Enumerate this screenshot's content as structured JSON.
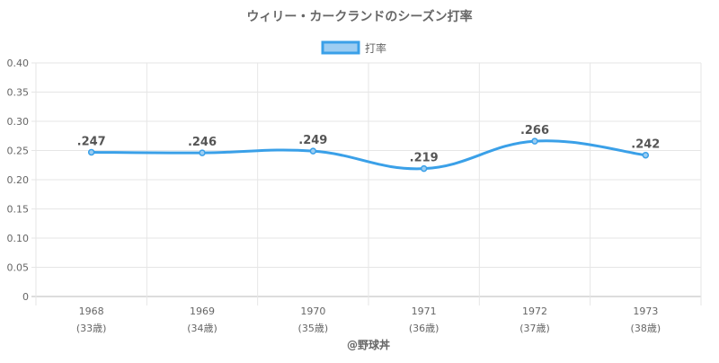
{
  "chart_data": {
    "type": "line",
    "title": "ウィリー・カークランドのシーズン打率",
    "legend": {
      "label": "打率",
      "position": "top"
    },
    "categories": [
      "1968",
      "1969",
      "1970",
      "1971",
      "1972",
      "1973"
    ],
    "sublabels": [
      "(33歳)",
      "(34歳)",
      "(35歳)",
      "(36歳)",
      "(37歳)",
      "(38歳)"
    ],
    "series": [
      {
        "name": "打率",
        "values": [
          0.247,
          0.246,
          0.249,
          0.219,
          0.266,
          0.242
        ]
      }
    ],
    "data_labels": [
      ".247",
      ".246",
      ".249",
      ".219",
      ".266",
      ".242"
    ],
    "yticks": [
      "0",
      "0.05",
      "0.10",
      "0.15",
      "0.20",
      "0.25",
      "0.30",
      "0.35",
      "0.40"
    ],
    "ylim": [
      0,
      0.4
    ],
    "grid": true,
    "footer": "@野球丼",
    "colors": {
      "line": "#3aa0e8",
      "fill": "#9ccdf2"
    }
  }
}
